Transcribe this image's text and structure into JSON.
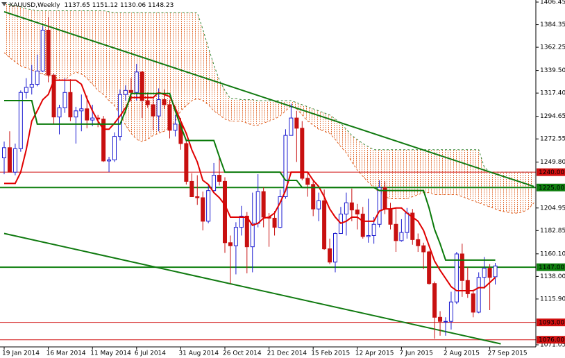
{
  "chart_data": {
    "type": "candlestick",
    "title": "XAUUSD,Weekly",
    "categories": [
      "19 Jan 2014",
      null,
      null,
      null,
      null,
      null,
      null,
      null,
      "16 Mar 2014",
      null,
      null,
      null,
      null,
      null,
      null,
      null,
      "11 May 2014",
      null,
      null,
      null,
      null,
      null,
      null,
      null,
      "6 Jul 2014",
      null,
      null,
      null,
      null,
      null,
      null,
      null,
      "31 Aug 2014",
      null,
      null,
      null,
      null,
      null,
      null,
      null,
      "26 Oct 2014",
      null,
      null,
      null,
      null,
      null,
      null,
      null,
      "21 Dec 2014",
      null,
      null,
      null,
      null,
      null,
      null,
      null,
      "15 Feb 2015",
      null,
      null,
      null,
      null,
      null,
      null,
      null,
      "12 Apr 2015",
      null,
      null,
      null,
      null,
      null,
      null,
      null,
      "7 Jun 2015",
      null,
      null,
      null,
      null,
      null,
      null,
      null,
      "2 Aug 2015",
      null,
      null,
      null,
      null,
      null,
      null,
      null,
      "27 Sep 2015",
      null,
      null,
      null,
      null,
      null,
      null,
      null,
      null
    ],
    "open": [
      1254,
      1264,
      1240,
      1263,
      1318,
      1323,
      1326,
      1339,
      1379,
      1335,
      1294,
      1303,
      1318,
      1294,
      1300,
      1302,
      1291,
      1293,
      1292,
      1251,
      1252,
      1275,
      1316,
      1320,
      1318,
      1338,
      1310,
      1306,
      1295,
      1311,
      1306,
      1281,
      1287,
      1268,
      1231,
      1216,
      1215,
      1192,
      1222,
      1237,
      1231,
      1171,
      1168,
      1186,
      1197,
      1167,
      1190,
      1221,
      1196,
      1195,
      1186,
      1216,
      1276,
      1293,
      1283,
      1234,
      1228,
      1204,
      1212,
      1165,
      1152,
      1180,
      1199,
      1210,
      1203,
      1199,
      1177,
      1178,
      1189,
      1225,
      1204,
      1189,
      1173,
      1181,
      1200,
      1174,
      1168,
      1162,
      1131,
      1098,
      1094,
      1094,
      1113,
      1160,
      1134,
      1121,
      1103,
      1137,
      1146,
      1137.65,
      null,
      null,
      null,
      null,
      null,
      null,
      null
    ],
    "high": [
      1270,
      1280,
      1268,
      1320,
      1332,
      1345,
      1355,
      1383,
      1392,
      1337,
      1306,
      1332,
      1331,
      1304,
      1316,
      1315,
      1306,
      1296,
      1295,
      1255,
      1279,
      1321,
      1325,
      1332,
      1346,
      1339,
      1318,
      1312,
      1322,
      1321,
      1311,
      1296,
      1293,
      1272,
      1239,
      1237,
      1221,
      1227,
      1249,
      1255,
      1235,
      1178,
      1191,
      1207,
      1201,
      1220,
      1238,
      1225,
      1200,
      1202,
      1223,
      1282,
      1307,
      1300,
      1290,
      1240,
      1231,
      1220,
      1223,
      1175,
      1181,
      1206,
      1220,
      1224,
      1209,
      1206,
      1214,
      1196,
      1232,
      1231,
      1210,
      1205,
      1194,
      1205,
      1204,
      1180,
      1171,
      1163,
      1133,
      1104,
      1098,
      1123,
      1162,
      1170,
      1147,
      1125,
      1142,
      1157,
      1150,
      1151.12,
      null,
      null,
      null,
      null,
      null,
      null,
      null
    ],
    "low": [
      1238,
      1240,
      1237,
      1260,
      1312,
      1316,
      1324,
      1338,
      1328,
      1287,
      1277,
      1298,
      1290,
      1268,
      1280,
      1283,
      1285,
      1284,
      1250,
      1240,
      1250,
      1271,
      1310,
      1309,
      1310,
      1293,
      1303,
      1281,
      1280,
      1302,
      1273,
      1275,
      1262,
      1228,
      1216,
      1208,
      1183,
      1190,
      1220,
      1227,
      1161,
      1131,
      1140,
      1178,
      1141,
      1142,
      1186,
      1186,
      1167,
      1178,
      1185,
      1214,
      1276,
      1250,
      1232,
      1216,
      1197,
      1192,
      1164,
      1150,
      1142,
      1180,
      1178,
      1192,
      1184,
      1175,
      1171,
      1170,
      1186,
      1199,
      1184,
      1162,
      1172,
      1175,
      1169,
      1162,
      1145,
      1130,
      1077,
      1080,
      1080,
      1086,
      1111,
      1118,
      1117,
      1098,
      1102,
      1126,
      1105,
      1130.06,
      null,
      null,
      null,
      null,
      null,
      null,
      null
    ],
    "close": [
      1264,
      1240,
      1263,
      1318,
      1323,
      1326,
      1339,
      1379,
      1335,
      1294,
      1303,
      1318,
      1294,
      1300,
      1302,
      1291,
      1293,
      1292,
      1251,
      1252,
      1275,
      1316,
      1320,
      1318,
      1338,
      1310,
      1306,
      1295,
      1311,
      1306,
      1281,
      1287,
      1268,
      1231,
      1216,
      1215,
      1192,
      1222,
      1237,
      1231,
      1171,
      1168,
      1186,
      1197,
      1167,
      1190,
      1221,
      1196,
      1195,
      1186,
      1216,
      1276,
      1293,
      1283,
      1234,
      1228,
      1204,
      1212,
      1165,
      1152,
      1180,
      1199,
      1210,
      1203,
      1199,
      1177,
      1178,
      1189,
      1225,
      1204,
      1189,
      1173,
      1181,
      1200,
      1174,
      1168,
      1162,
      1131,
      1098,
      1094,
      1094,
      1113,
      1160,
      1134,
      1121,
      1103,
      1137,
      1146,
      1137,
      1148.23,
      null,
      null,
      null,
      null,
      null,
      null,
      null
    ],
    "bull_color": "#1a1ad0",
    "bear_color": "#c81010",
    "ylim": [
      1071.05,
      1406.45
    ],
    "yticks": [
      1406.45,
      1384.35,
      1362.25,
      {
        "value": 1339.5,
        "label": "1339.50"
      },
      {
        "value": 1317.4,
        "label": "1317.40"
      },
      1294.65,
      1272.55,
      {
        "value": 1249.8,
        "label": "1249.80"
      },
      1204.95,
      1182.85,
      {
        "value": 1160.1,
        "label": "1160.10"
      },
      {
        "value": 1138,
        "label": "1138.00"
      },
      {
        "value": 1115.9,
        "label": "1115.90"
      },
      1071.05
    ],
    "lines": [
      {
        "color": "#e00000",
        "values": [
          1229,
          1229,
          1229,
          1240,
          1262,
          1290,
          1300,
          1311,
          1316,
          1330,
          1330,
          1330,
          1330,
          1330,
          1326,
          1312,
          1300,
          1290,
          1282,
          1282,
          1288,
          1295,
          1303,
          1313,
          1313,
          1313,
          1313,
          1313,
          1318,
          1316,
          1314,
          1303,
          1290,
          1278,
          1262,
          1250,
          1232,
          1228,
          1220,
          1215,
          1208,
          1196,
          1196,
          1196,
          1196,
          1188,
          1190,
          1195,
          1196,
          1200,
          1210,
          1222,
          1240,
          1240,
          1240,
          1240,
          1232,
          1226,
          1216,
          1204,
          1196,
          1190,
          1192,
          1196,
          1196,
          1192,
          1192,
          1192,
          1202,
          1204,
          1204,
          1205,
          1205,
          1200,
          1196,
          1192,
          1183,
          1168,
          1153,
          1144,
          1136,
          1128,
          1124,
          1124,
          1124,
          1124,
          1127,
          1127,
          1132,
          1137,
          null,
          null,
          null,
          null,
          null,
          null,
          null
        ]
      },
      {
        "color": "#0a7a0a",
        "values": [
          1310,
          1310,
          1310,
          1310,
          1310,
          1310,
          1287,
          1287,
          1287,
          1287,
          1287,
          1287,
          1287,
          1287,
          1287,
          1287,
          1287,
          1287,
          1287,
          1287,
          1287,
          1287,
          1300,
          1317,
          1317,
          1317,
          1317,
          1317,
          1317,
          1317,
          1317,
          1300,
          1285,
          1271,
          1271,
          1271,
          1271,
          1271,
          1271,
          1255,
          1240,
          1240,
          1240,
          1240,
          1240,
          1240,
          1240,
          1240,
          1240,
          1240,
          1240,
          1232,
          1232,
          1232,
          1225,
          1225,
          1225,
          1225,
          1225,
          1225,
          1225,
          1225,
          1225,
          1225,
          1225,
          1225,
          1225,
          1225,
          1222,
          1222,
          1222,
          1222,
          1222,
          1222,
          1222,
          1222,
          1222,
          1205,
          1184,
          1170,
          1154,
          1154,
          1154,
          1154,
          1154,
          1154,
          1154,
          1154,
          1154,
          1154,
          null,
          null,
          null,
          null,
          null,
          null,
          null
        ]
      }
    ],
    "cloud": {
      "color": "#e06020",
      "upper_color": "#3a8a3a",
      "upper": [
        1405,
        1404,
        1403,
        1402,
        1400,
        1399,
        1398,
        1398,
        1398,
        1398,
        1398,
        1398,
        1398,
        1398,
        1398,
        1398,
        1398,
        1398,
        1398,
        1397,
        1396,
        1396,
        1396,
        1396,
        1396,
        1396,
        1396,
        1396,
        1396,
        1396,
        1396,
        1396,
        1396,
        1396,
        1396,
        1396,
        1380,
        1362,
        1345,
        1330,
        1320,
        1312,
        1312,
        1311,
        1311,
        1311,
        1310,
        1310,
        1310,
        1310,
        1310,
        1310,
        1310,
        1308,
        1306,
        1304,
        1302,
        1300,
        1298,
        1296,
        1292,
        1288,
        1282,
        1276,
        1272,
        1268,
        1265,
        1262,
        1262,
        1262,
        1262,
        1262,
        1262,
        1262,
        1262,
        1262,
        1262,
        1262,
        1262,
        1262,
        1262,
        1262,
        1262,
        1262,
        1262,
        1262,
        1262,
        1245,
        1240,
        1240,
        1240,
        1240,
        1240,
        1240,
        1240,
        1240,
        1240
      ],
      "lower": [
        1357,
        1352,
        1348,
        1344,
        1342,
        1340,
        1338,
        1336,
        1334,
        1334,
        1330,
        1330,
        1335,
        1338,
        1336,
        1332,
        1326,
        1320,
        1316,
        1310,
        1305,
        1296,
        1286,
        1278,
        1272,
        1270,
        1272,
        1276,
        1278,
        1280,
        1284,
        1290,
        1300,
        1305,
        1310,
        1312,
        1310,
        1306,
        1300,
        1296,
        1292,
        1290,
        1290,
        1290,
        1288,
        1286,
        1286,
        1288,
        1290,
        1292,
        1295,
        1300,
        1305,
        1302,
        1296,
        1290,
        1286,
        1282,
        1280,
        1278,
        1272,
        1265,
        1259,
        1250,
        1242,
        1236,
        1230,
        1225,
        1220,
        1216,
        1214,
        1214,
        1214,
        1214,
        1216,
        1218,
        1220,
        1220,
        1218,
        1218,
        1218,
        1218,
        1218,
        1216,
        1214,
        1212,
        1210,
        1208,
        1206,
        1204,
        1202,
        1201,
        1200,
        1200,
        1201,
        1204,
        1210
      ]
    },
    "trendlines": [
      {
        "color": "#107a10",
        "x": [
          0,
          96
        ],
        "values": [
          1397,
          1226
        ]
      },
      {
        "color": "#107a10",
        "x": [
          0,
          90
        ],
        "values": [
          1180,
          1072
        ]
      }
    ],
    "levels": [
      {
        "value": 1240,
        "label": "1240.00",
        "color": "#d01010",
        "width": 1
      },
      {
        "value": 1225,
        "label": "1225.00",
        "color": "#108010",
        "width": 2
      },
      {
        "value": 1147,
        "label": "1147.00",
        "color": "#108010",
        "width": 2
      },
      {
        "value": 1093,
        "label": "1093.00",
        "color": "#d01010",
        "width": 1
      },
      {
        "value": 1076,
        "label": "1076.00",
        "color": "#d01010",
        "width": 1
      }
    ],
    "grid": false
  }
}
